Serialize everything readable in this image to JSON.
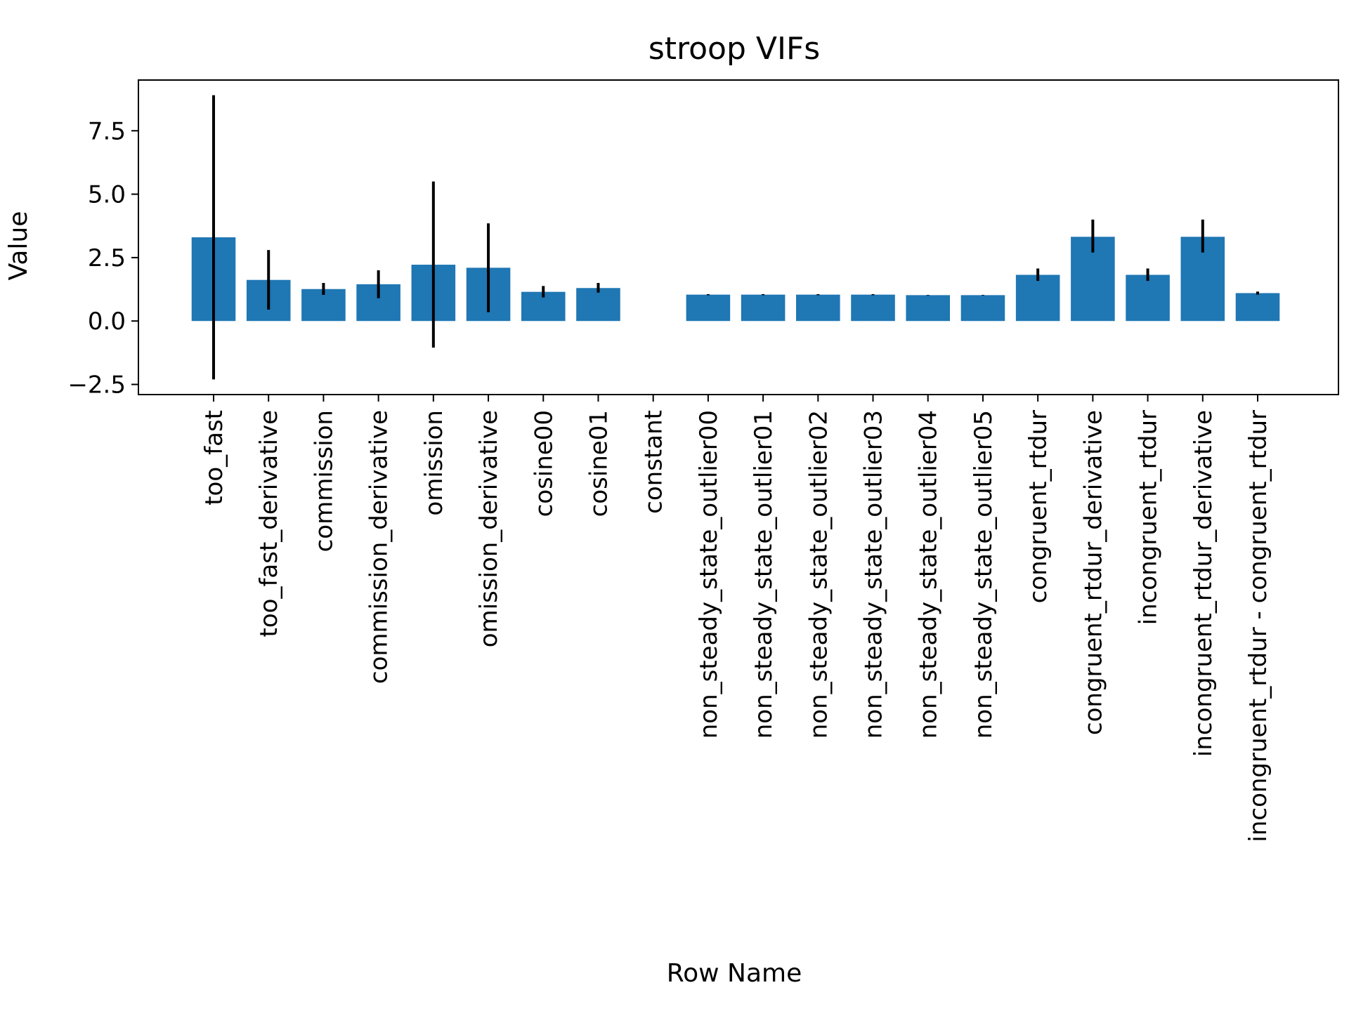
{
  "chart_data": {
    "type": "bar",
    "title": "stroop VIFs",
    "xlabel": "Row Name",
    "ylabel": "Value",
    "ylim": [
      -2.9,
      9.5
    ],
    "yticks": [
      -2.5,
      0.0,
      2.5,
      5.0,
      7.5
    ],
    "ytick_labels": [
      "−2.5",
      "0.0",
      "2.5",
      "5.0",
      "7.5"
    ],
    "grid": false,
    "legend": "none",
    "bar_color": "#1f77b4",
    "error_color": "#000000",
    "categories": [
      "too_fast",
      "too_fast_derivative",
      "commission",
      "commission_derivative",
      "omission",
      "omission_derivative",
      "cosine00",
      "cosine01",
      "constant",
      "non_steady_state_outlier00",
      "non_steady_state_outlier01",
      "non_steady_state_outlier02",
      "non_steady_state_outlier03",
      "non_steady_state_outlier04",
      "non_steady_state_outlier05",
      "congruent_rtdur",
      "congruent_rtdur_derivative",
      "incongruent_rtdur",
      "incongruent_rtdur_derivative",
      "incongruent_rtdur - congruent_rtdur"
    ],
    "values": [
      3.3,
      1.62,
      1.26,
      1.45,
      2.22,
      2.1,
      1.15,
      1.3,
      null,
      1.04,
      1.04,
      1.04,
      1.04,
      1.02,
      1.02,
      1.82,
      3.32,
      1.82,
      3.32,
      1.1
    ],
    "error_low": [
      -2.3,
      0.45,
      1.03,
      0.9,
      -1.05,
      0.35,
      0.93,
      1.12,
      null,
      1.02,
      1.02,
      1.02,
      1.02,
      1.01,
      1.01,
      1.58,
      2.7,
      1.58,
      2.7,
      1.04
    ],
    "error_high": [
      8.9,
      2.8,
      1.5,
      2.0,
      5.5,
      3.85,
      1.38,
      1.5,
      null,
      1.06,
      1.06,
      1.06,
      1.06,
      1.03,
      1.03,
      2.07,
      4.0,
      2.07,
      4.0,
      1.16
    ]
  }
}
